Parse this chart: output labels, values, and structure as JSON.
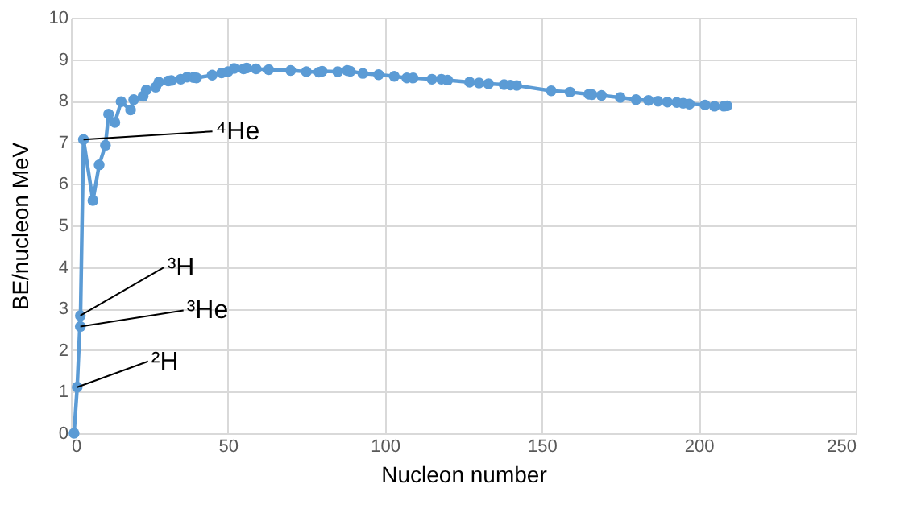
{
  "chart_data": {
    "type": "line",
    "xlabel": "Nucleon number",
    "ylabel": "BE/nucleon  MeV",
    "xlim": [
      0,
      250
    ],
    "xticks": [
      0,
      50,
      100,
      150,
      200,
      250
    ],
    "ylim": [
      0,
      10
    ],
    "yticks": [
      0,
      1,
      2,
      3,
      4,
      5,
      6,
      7,
      8,
      9,
      10
    ],
    "grid": true,
    "marker": "circle",
    "line_style": "solid",
    "x": [
      1,
      2,
      3,
      3,
      4,
      7,
      9,
      11,
      12,
      14,
      16,
      19,
      20,
      23,
      24,
      27,
      28,
      31,
      32,
      35,
      37,
      39,
      40,
      45,
      48,
      50,
      52,
      55,
      56,
      59,
      63,
      70,
      75,
      79,
      80,
      85,
      88,
      89,
      93,
      98,
      103,
      107,
      109,
      115,
      118,
      120,
      127,
      130,
      133,
      138,
      140,
      142,
      153,
      159,
      165,
      166,
      169,
      175,
      180,
      184,
      187,
      190,
      193,
      195,
      197,
      202,
      205,
      208,
      209
    ],
    "series": [
      {
        "color": "#5b9bd5",
        "values": [
          0,
          1.11,
          2.83,
          2.57,
          7.07,
          5.6,
          6.46,
          6.93,
          7.68,
          7.48,
          7.98,
          7.78,
          8.03,
          8.11,
          8.26,
          8.33,
          8.45,
          8.48,
          8.49,
          8.52,
          8.57,
          8.56,
          8.55,
          8.62,
          8.67,
          8.7,
          8.78,
          8.77,
          8.79,
          8.77,
          8.75,
          8.73,
          8.7,
          8.69,
          8.71,
          8.7,
          8.73,
          8.71,
          8.66,
          8.63,
          8.59,
          8.55,
          8.55,
          8.52,
          8.52,
          8.5,
          8.45,
          8.43,
          8.41,
          8.39,
          8.38,
          8.37,
          8.24,
          8.21,
          8.16,
          8.15,
          8.13,
          8.08,
          8.03,
          8.01,
          7.99,
          7.97,
          7.96,
          7.94,
          7.92,
          7.9,
          7.87,
          7.87,
          7.88
        ]
      }
    ],
    "annotations": [
      {
        "text": "⁴He",
        "x": 4,
        "y": 7.07
      },
      {
        "text": "³H",
        "x": 3,
        "y": 2.83
      },
      {
        "text": "³He",
        "x": 3,
        "y": 2.57
      },
      {
        "text": "²H",
        "x": 2,
        "y": 1.11
      }
    ]
  }
}
